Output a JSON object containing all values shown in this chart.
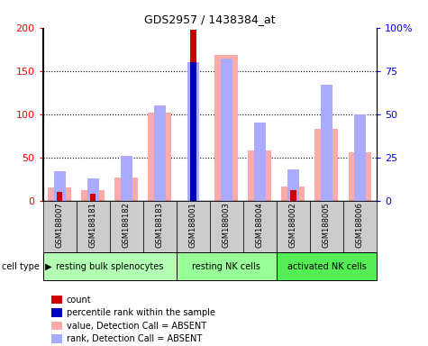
{
  "title": "GDS2957 / 1438384_at",
  "samples": [
    "GSM188007",
    "GSM188181",
    "GSM188182",
    "GSM188183",
    "GSM188001",
    "GSM188003",
    "GSM188004",
    "GSM188002",
    "GSM188005",
    "GSM188006"
  ],
  "cell_types": [
    {
      "label": "resting bulk splenocytes",
      "start": 0,
      "end": 4,
      "color": "#b3ffb3"
    },
    {
      "label": "resting NK cells",
      "start": 4,
      "end": 7,
      "color": "#99ff99"
    },
    {
      "label": "activated NK cells",
      "start": 7,
      "end": 10,
      "color": "#55ee55"
    }
  ],
  "red_bars": [
    10,
    8,
    0,
    0,
    198,
    0,
    0,
    12,
    0,
    0
  ],
  "pink_bars": [
    15,
    12,
    27,
    102,
    0,
    168,
    58,
    16,
    83,
    56
  ],
  "blue_light_bars": [
    17,
    13,
    26,
    55,
    80,
    82,
    45,
    18,
    67,
    50
  ],
  "blue_dark_bars": [
    0,
    0,
    0,
    0,
    80,
    0,
    0,
    0,
    0,
    0
  ],
  "ylim_left": [
    0,
    200
  ],
  "ylim_right": [
    0,
    100
  ],
  "yticks_left": [
    0,
    50,
    100,
    150,
    200
  ],
  "yticks_right": [
    0,
    25,
    50,
    75,
    100
  ],
  "yticklabels_right": [
    "0",
    "25",
    "50",
    "75",
    "100%"
  ],
  "grid_lines": [
    50,
    100,
    150
  ],
  "bg_color": "#ffffff",
  "red_color": "#cc0000",
  "pink_color": "#ffaaaa",
  "blue_dark_color": "#0000bb",
  "blue_light_color": "#aaaaff",
  "gray_color": "#cccccc",
  "legend_items": [
    {
      "color": "#cc0000",
      "label": "count"
    },
    {
      "color": "#0000bb",
      "label": "percentile rank within the sample"
    },
    {
      "color": "#ffaaaa",
      "label": "value, Detection Call = ABSENT"
    },
    {
      "color": "#aaaaff",
      "label": "rank, Detection Call = ABSENT"
    }
  ]
}
